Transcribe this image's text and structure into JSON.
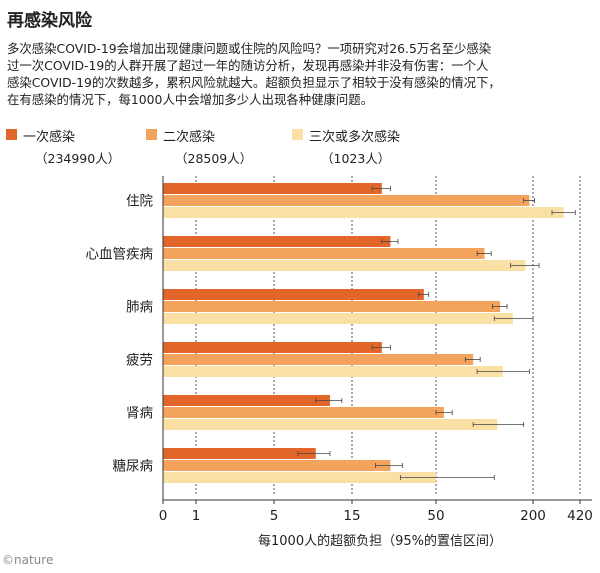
{
  "title": "再感染风险",
  "intro": [
    "多次感染COVID-19会增加出现健康问题或住院的风险吗？一项研究对26.5万名至少感染",
    "过一次COVID-19的人群开展了超过一年的随访分析，发现再感染并非没有伤害：一个人",
    "感染COVID-19的次数越多，累积风险就越大。超额负担显示了相较于没有感染的情况下，",
    "在有感染的情况下，每1000人中会增加多少人出现各种健康问题。"
  ],
  "legend": [
    {
      "label": "一次感染",
      "count": "（234990人）",
      "color": "#e2652a"
    },
    {
      "label": "二次感染",
      "count": "（28509人）",
      "color": "#f3a35b"
    },
    {
      "label": "三次或多次感染",
      "count": "（1023人）",
      "color": "#fbe0a6"
    }
  ],
  "footer": "©nature",
  "chart_data": {
    "type": "bar",
    "orientation": "horizontal",
    "xscale": "pseudo-log",
    "xlabel": "每1000人的超额负担（95%的置信区间）",
    "xlim": [
      0,
      420
    ],
    "xticks": [
      0,
      1,
      5,
      15,
      50,
      200,
      420
    ],
    "xtick_labels": [
      "0",
      "1",
      "5",
      "15",
      "50",
      "200",
      "420"
    ],
    "categories": [
      "住院",
      "心血管疾病",
      "肺病",
      "疲劳",
      "肾病",
      "糖尿病"
    ],
    "series": [
      {
        "name": "一次感染",
        "color": "#e2652a",
        "values": [
          23,
          26,
          42,
          23,
          11,
          9
        ],
        "ci_low": [
          20,
          23,
          39,
          20,
          9,
          7
        ],
        "ci_high": [
          26,
          29,
          45,
          26,
          13,
          11
        ]
      },
      {
        "name": "二次感染",
        "color": "#f3a35b",
        "values": [
          190,
          100,
          125,
          85,
          56,
          26
        ],
        "ci_low": [
          175,
          90,
          112,
          76,
          50,
          21
        ],
        "ci_high": [
          205,
          110,
          138,
          94,
          63,
          31
        ]
      },
      {
        "name": "三次或多次感染",
        "color": "#fbe0a6",
        "values": [
          325,
          180,
          150,
          130,
          120,
          50
        ],
        "ci_low": [
          270,
          145,
          115,
          90,
          85,
          30
        ],
        "ci_high": [
          390,
          220,
          200,
          190,
          175,
          115
        ]
      }
    ]
  }
}
